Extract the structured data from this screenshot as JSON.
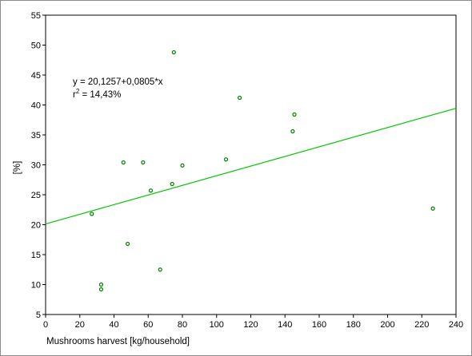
{
  "chart_data": {
    "type": "scatter",
    "title": "",
    "xlabel": "Mushrooms harvest [kg/household]",
    "ylabel": "[%]",
    "xlim": [
      0,
      240
    ],
    "ylim": [
      5,
      55
    ],
    "xticks": [
      0,
      20,
      40,
      60,
      80,
      100,
      120,
      140,
      160,
      180,
      200,
      220,
      240
    ],
    "yticks": [
      5,
      10,
      15,
      20,
      25,
      30,
      35,
      40,
      45,
      50,
      55
    ],
    "grid": false,
    "series": [
      {
        "points": [
          {
            "x": 27,
            "y": 21.8
          },
          {
            "x": 32.5,
            "y": 10.0
          },
          {
            "x": 32.5,
            "y": 9.2
          },
          {
            "x": 45.5,
            "y": 30.4
          },
          {
            "x": 48,
            "y": 16.8
          },
          {
            "x": 57,
            "y": 30.4
          },
          {
            "x": 61.5,
            "y": 25.7
          },
          {
            "x": 67,
            "y": 12.5
          },
          {
            "x": 74,
            "y": 26.8
          },
          {
            "x": 75,
            "y": 48.8
          },
          {
            "x": 80,
            "y": 29.9
          },
          {
            "x": 105.5,
            "y": 30.9
          },
          {
            "x": 113.5,
            "y": 41.2
          },
          {
            "x": 144.5,
            "y": 35.6
          },
          {
            "x": 145.5,
            "y": 38.4
          },
          {
            "x": 226.5,
            "y": 22.7
          }
        ]
      }
    ],
    "fit_line": {
      "intercept": 20.1257,
      "slope": 0.0805
    },
    "annotation": {
      "equation": "y =  20,1257+0,0805*x",
      "r2_label": "r",
      "r2_sup": "2",
      "r2_value": " = 14,43%"
    },
    "colors": {
      "marker": "#008000",
      "fit_line": "#00c800",
      "axis": "#000000"
    }
  }
}
